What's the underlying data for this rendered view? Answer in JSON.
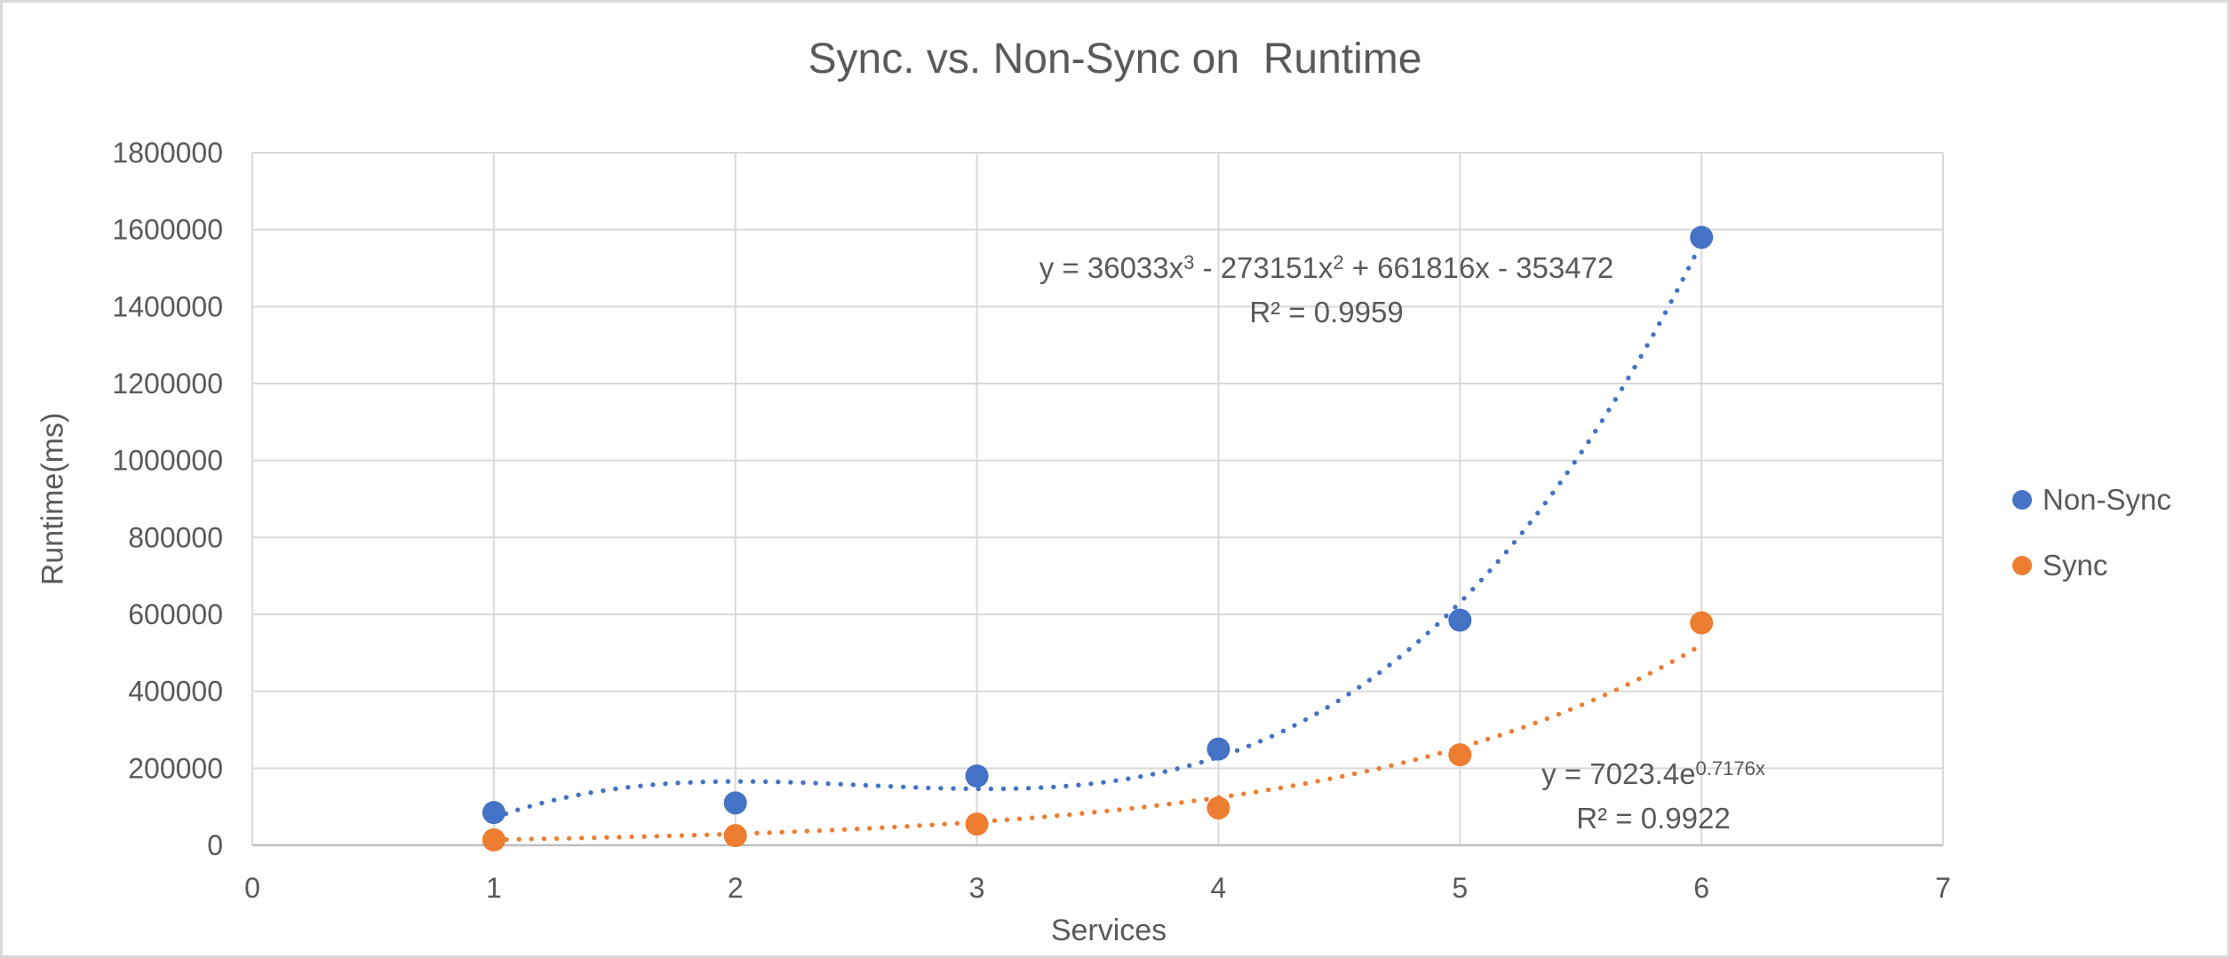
{
  "frame": {
    "background": "#ffffff",
    "border_color": "#d9d9d9"
  },
  "colors": {
    "grid": "#d9d9d9",
    "axis_line": "#bfbfbf",
    "text": "#595959",
    "non_sync": "#4472C4",
    "sync": "#ED7D31"
  },
  "chart_data": {
    "type": "scatter",
    "title": "Sync. vs. Non-Sync on  Runtime",
    "xlabel": "Services",
    "ylabel": "Runtime(ms)",
    "xlim": [
      0,
      7
    ],
    "ylim": [
      0,
      1800000
    ],
    "x_ticks": [
      0,
      1,
      2,
      3,
      4,
      5,
      6,
      7
    ],
    "y_ticks": [
      0,
      200000,
      400000,
      600000,
      800000,
      1000000,
      1200000,
      1400000,
      1600000,
      1800000
    ],
    "grid": true,
    "legend_position": "right",
    "series": [
      {
        "name": "Non-Sync",
        "color": "#4472C4",
        "x": [
          1,
          2,
          3,
          4,
          5,
          6
        ],
        "y": [
          85000,
          110000,
          180000,
          250000,
          585000,
          1580000
        ],
        "trendline": {
          "type": "polynomial",
          "coefficients": [
            36033,
            -273151,
            661816,
            -353472
          ],
          "range": [
            1,
            6
          ],
          "equation": "y = 36033x³ - 273151x² + 661816x - 353472",
          "r_squared": "R² = 0.9959"
        }
      },
      {
        "name": "Sync",
        "color": "#ED7D31",
        "x": [
          1,
          2,
          3,
          4,
          5,
          6
        ],
        "y": [
          14000,
          25000,
          55000,
          97000,
          235000,
          578000
        ],
        "trendline": {
          "type": "exponential",
          "a": 7023.4,
          "b": 0.7176,
          "range": [
            1,
            6
          ],
          "equation": "y = 7023.4e^(0.7176x)",
          "r_squared": "R² = 0.9922"
        }
      }
    ],
    "annotations": [
      {
        "id": "nonsync-equation",
        "series": "Non-Sync",
        "lines": [
          {
            "segments": [
              {
                "text": "y = 36033x"
              },
              {
                "text": "3",
                "sup": true
              },
              {
                "text": " - 273151x"
              },
              {
                "text": "2",
                "sup": true
              },
              {
                "text": " + 661816x - 353472"
              }
            ]
          },
          {
            "segments": [
              {
                "text": "R² = 0.9959"
              }
            ]
          }
        ]
      },
      {
        "id": "sync-equation",
        "series": "Sync",
        "lines": [
          {
            "segments": [
              {
                "text": "y = 7023.4e"
              },
              {
                "text": "0.7176x",
                "sup": true
              }
            ]
          },
          {
            "segments": [
              {
                "text": "R² = 0.9922"
              }
            ]
          }
        ]
      }
    ]
  },
  "legend": {
    "items": [
      {
        "label": "Non-Sync",
        "color": "#4472C4"
      },
      {
        "label": "Sync",
        "color": "#ED7D31"
      }
    ]
  }
}
